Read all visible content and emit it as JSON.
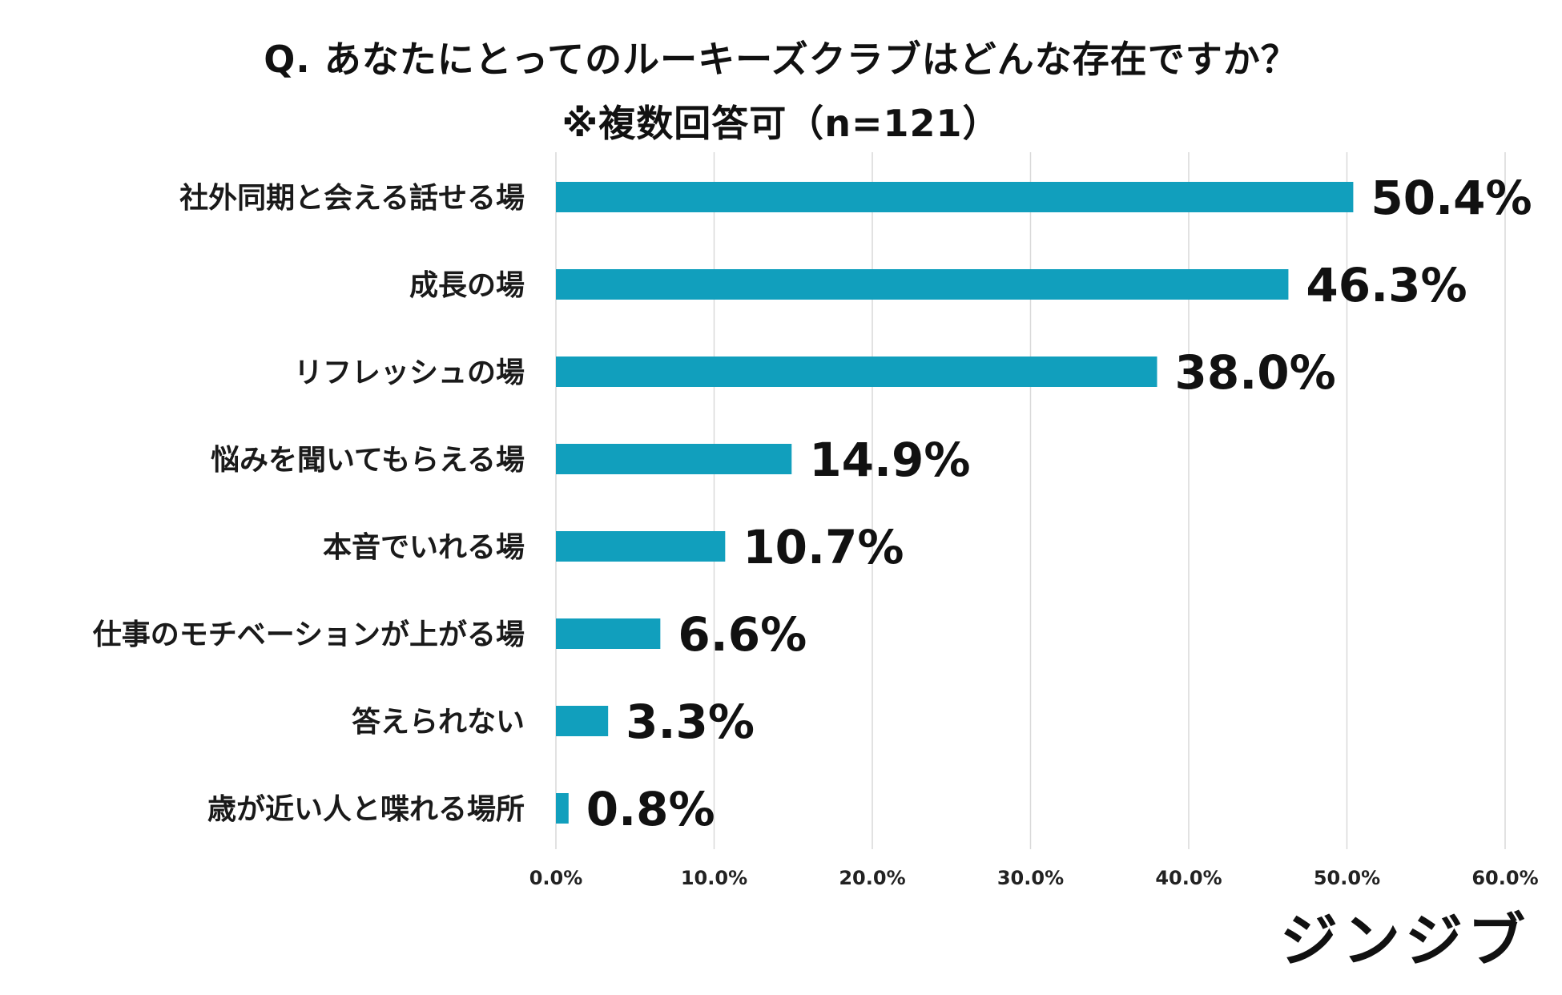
{
  "chart_data": {
    "type": "bar",
    "orientation": "horizontal",
    "title": "Q. あなたにとってのルーキーズクラブはどんな存在ですか？",
    "subtitle": "※複数回答可（n=121）",
    "categories": [
      "社外同期と会える話せる場",
      "成長の場",
      "リフレッシュの場",
      "悩みを聞いてもらえる場",
      "本音でいれる場",
      "仕事のモチベーションが上がる場",
      "答えられない",
      "歳が近い人と喋れる場所"
    ],
    "values": [
      50.4,
      46.3,
      38.0,
      14.9,
      10.7,
      6.6,
      3.3,
      0.8
    ],
    "value_labels": [
      "50.4%",
      "46.3%",
      "38.0%",
      "14.9%",
      "10.7%",
      "6.6%",
      "3.3%",
      "0.8%"
    ],
    "xlim": [
      0,
      60
    ],
    "xticks": [
      0,
      10,
      20,
      30,
      40,
      50,
      60
    ],
    "xtick_labels": [
      "0.0%",
      "10.0%",
      "20.0%",
      "30.0%",
      "40.0%",
      "50.0%",
      "60.0%"
    ],
    "xlabel": "",
    "ylabel": "",
    "grid": "vertical",
    "bar_color": "#119fbd"
  },
  "logo": {
    "text": "ジンジブ"
  }
}
